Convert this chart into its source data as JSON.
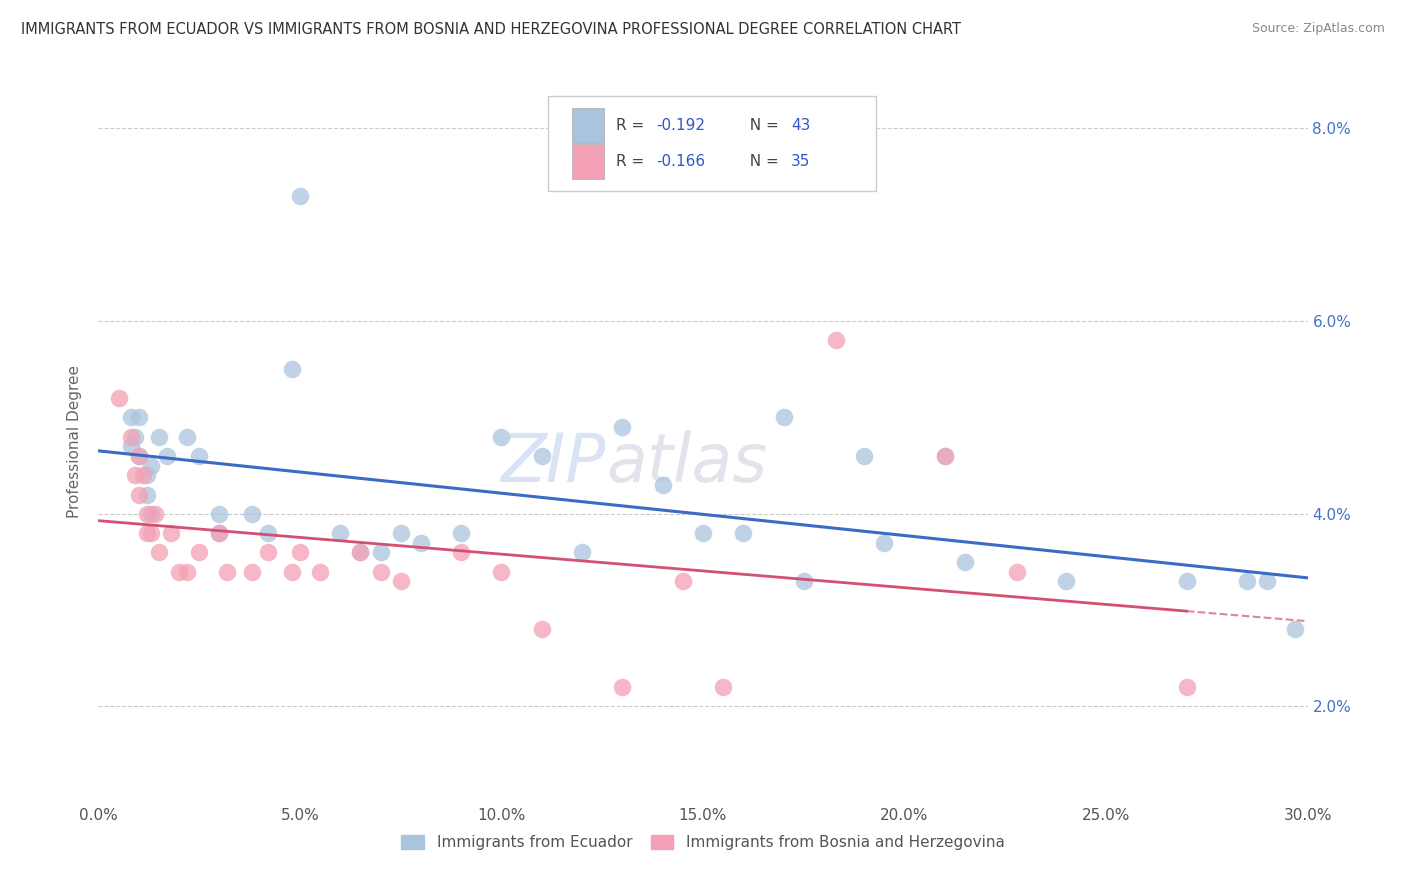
{
  "title": "IMMIGRANTS FROM ECUADOR VS IMMIGRANTS FROM BOSNIA AND HERZEGOVINA PROFESSIONAL DEGREE CORRELATION CHART",
  "source": "Source: ZipAtlas.com",
  "ylabel_label": "Professional Degree",
  "xlim": [
    0.0,
    0.3
  ],
  "ylim": [
    0.01,
    0.085
  ],
  "ecuador_R": -0.192,
  "ecuador_N": 43,
  "bosnia_R": -0.166,
  "bosnia_N": 35,
  "ecuador_color": "#aac4de",
  "ecuador_line_color": "#3b6bc4",
  "bosnia_color": "#f4a0b5",
  "bosnia_line_color": "#d45070",
  "watermark_zip": "ZIP",
  "watermark_atlas": "atlas",
  "legend_label_ecuador": "Immigrants from Ecuador",
  "legend_label_bosnia": "Immigrants from Bosnia and Herzegovina",
  "ecuador_scatter": [
    [
      0.008,
      0.05
    ],
    [
      0.008,
      0.047
    ],
    [
      0.009,
      0.048
    ],
    [
      0.01,
      0.05
    ],
    [
      0.01,
      0.046
    ],
    [
      0.012,
      0.044
    ],
    [
      0.012,
      0.042
    ],
    [
      0.013,
      0.045
    ],
    [
      0.013,
      0.04
    ],
    [
      0.015,
      0.048
    ],
    [
      0.017,
      0.046
    ],
    [
      0.022,
      0.048
    ],
    [
      0.025,
      0.046
    ],
    [
      0.03,
      0.038
    ],
    [
      0.03,
      0.04
    ],
    [
      0.038,
      0.04
    ],
    [
      0.042,
      0.038
    ],
    [
      0.048,
      0.055
    ],
    [
      0.05,
      0.073
    ],
    [
      0.06,
      0.038
    ],
    [
      0.065,
      0.036
    ],
    [
      0.07,
      0.036
    ],
    [
      0.075,
      0.038
    ],
    [
      0.08,
      0.037
    ],
    [
      0.09,
      0.038
    ],
    [
      0.1,
      0.048
    ],
    [
      0.11,
      0.046
    ],
    [
      0.12,
      0.036
    ],
    [
      0.13,
      0.049
    ],
    [
      0.14,
      0.043
    ],
    [
      0.15,
      0.038
    ],
    [
      0.16,
      0.038
    ],
    [
      0.17,
      0.05
    ],
    [
      0.175,
      0.033
    ],
    [
      0.19,
      0.046
    ],
    [
      0.195,
      0.037
    ],
    [
      0.21,
      0.046
    ],
    [
      0.215,
      0.035
    ],
    [
      0.24,
      0.033
    ],
    [
      0.27,
      0.033
    ],
    [
      0.285,
      0.033
    ],
    [
      0.29,
      0.033
    ],
    [
      0.297,
      0.028
    ]
  ],
  "bosnia_scatter": [
    [
      0.005,
      0.052
    ],
    [
      0.008,
      0.048
    ],
    [
      0.009,
      0.044
    ],
    [
      0.01,
      0.046
    ],
    [
      0.01,
      0.042
    ],
    [
      0.011,
      0.044
    ],
    [
      0.012,
      0.04
    ],
    [
      0.012,
      0.038
    ],
    [
      0.013,
      0.038
    ],
    [
      0.014,
      0.04
    ],
    [
      0.015,
      0.036
    ],
    [
      0.018,
      0.038
    ],
    [
      0.02,
      0.034
    ],
    [
      0.022,
      0.034
    ],
    [
      0.025,
      0.036
    ],
    [
      0.03,
      0.038
    ],
    [
      0.032,
      0.034
    ],
    [
      0.038,
      0.034
    ],
    [
      0.042,
      0.036
    ],
    [
      0.048,
      0.034
    ],
    [
      0.05,
      0.036
    ],
    [
      0.055,
      0.034
    ],
    [
      0.065,
      0.036
    ],
    [
      0.07,
      0.034
    ],
    [
      0.075,
      0.033
    ],
    [
      0.09,
      0.036
    ],
    [
      0.1,
      0.034
    ],
    [
      0.11,
      0.028
    ],
    [
      0.13,
      0.022
    ],
    [
      0.145,
      0.033
    ],
    [
      0.155,
      0.022
    ],
    [
      0.183,
      0.058
    ],
    [
      0.21,
      0.046
    ],
    [
      0.228,
      0.034
    ],
    [
      0.27,
      0.022
    ]
  ]
}
